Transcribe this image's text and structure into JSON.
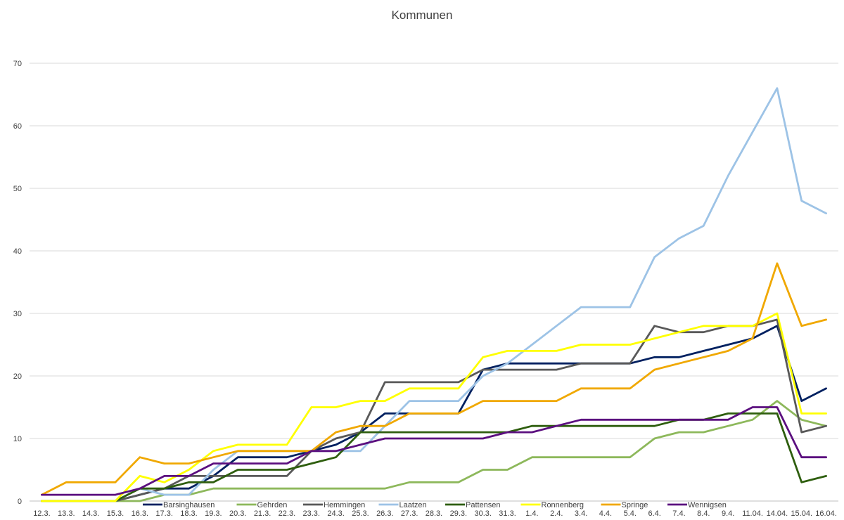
{
  "chart_data": {
    "type": "line",
    "title": "Kommunen",
    "xlabel": "",
    "ylabel": "",
    "ylim": [
      0,
      70
    ],
    "yticks": [
      0,
      10,
      20,
      30,
      40,
      50,
      60,
      70
    ],
    "grid": "horizontal",
    "legend_position": "bottom",
    "categories": [
      "12.3.",
      "13.3.",
      "14.3.",
      "15.3.",
      "16.3.",
      "17.3.",
      "18.3.",
      "19.3.",
      "20.3.",
      "21.3.",
      "22.3.",
      "23.3.",
      "24.3.",
      "25.3.",
      "26.3.",
      "27.3.",
      "28.3.",
      "29.3.",
      "30.3.",
      "31.3.",
      "1.4.",
      "2.4.",
      "3.4.",
      "4.4.",
      "5.4.",
      "6.4.",
      "7.4.",
      "8.4.",
      "9.4.",
      "11.04.",
      "14.04.",
      "15.04.",
      "16.04."
    ],
    "series": [
      {
        "name": "Barsinghausen",
        "color": "#002060",
        "values": [
          0,
          0,
          0,
          0,
          1,
          2,
          2,
          4,
          7,
          7,
          7,
          8,
          9,
          11,
          14,
          14,
          14,
          14,
          21,
          22,
          22,
          22,
          22,
          22,
          22,
          23,
          23,
          24,
          25,
          26,
          28,
          16,
          18
        ]
      },
      {
        "name": "Gehrden",
        "color": "#8DB85B",
        "values": [
          0,
          0,
          0,
          0,
          0,
          1,
          1,
          2,
          2,
          2,
          2,
          2,
          2,
          2,
          2,
          3,
          3,
          3,
          5,
          5,
          7,
          7,
          7,
          7,
          7,
          10,
          11,
          11,
          12,
          13,
          16,
          13,
          12
        ]
      },
      {
        "name": "Hemmingen",
        "color": "#595959",
        "values": [
          0,
          0,
          0,
          0,
          1,
          2,
          4,
          4,
          4,
          4,
          4,
          8,
          10,
          11,
          19,
          19,
          19,
          19,
          21,
          21,
          21,
          21,
          22,
          22,
          22,
          28,
          27,
          27,
          28,
          28,
          29,
          11,
          12
        ]
      },
      {
        "name": "Laatzen",
        "color": "#9DC3E6",
        "values": [
          0,
          0,
          0,
          0,
          2,
          1,
          1,
          5,
          8,
          8,
          8,
          8,
          8,
          8,
          12,
          16,
          16,
          16,
          20,
          22,
          25,
          28,
          31,
          31,
          31,
          39,
          42,
          44,
          52,
          59,
          66,
          48,
          46
        ]
      },
      {
        "name": "Pattensen",
        "color": "#2E5E0E",
        "values": [
          0,
          0,
          0,
          0,
          2,
          2,
          3,
          3,
          5,
          5,
          5,
          6,
          7,
          11,
          11,
          11,
          11,
          11,
          11,
          11,
          12,
          12,
          12,
          12,
          12,
          12,
          13,
          13,
          14,
          14,
          14,
          3,
          4
        ]
      },
      {
        "name": "Ronnenberg",
        "color": "#FFFF00",
        "values": [
          0,
          0,
          0,
          0,
          4,
          3,
          5,
          8,
          9,
          9,
          9,
          15,
          15,
          16,
          16,
          18,
          18,
          18,
          23,
          24,
          24,
          24,
          25,
          25,
          25,
          26,
          27,
          28,
          28,
          28,
          30,
          14,
          14
        ]
      },
      {
        "name": "Springe",
        "color": "#F0A800",
        "values": [
          1,
          3,
          3,
          3,
          7,
          6,
          6,
          7,
          8,
          8,
          8,
          8,
          11,
          12,
          12,
          14,
          14,
          14,
          16,
          16,
          16,
          16,
          18,
          18,
          18,
          21,
          22,
          23,
          24,
          26,
          38,
          28,
          29
        ]
      },
      {
        "name": "Wennigsen",
        "color": "#5B0F7F",
        "values": [
          1,
          1,
          1,
          1,
          2,
          4,
          4,
          6,
          6,
          6,
          6,
          8,
          8,
          9,
          10,
          10,
          10,
          10,
          10,
          11,
          11,
          12,
          13,
          13,
          13,
          13,
          13,
          13,
          13,
          15,
          15,
          7,
          7
        ]
      }
    ]
  }
}
